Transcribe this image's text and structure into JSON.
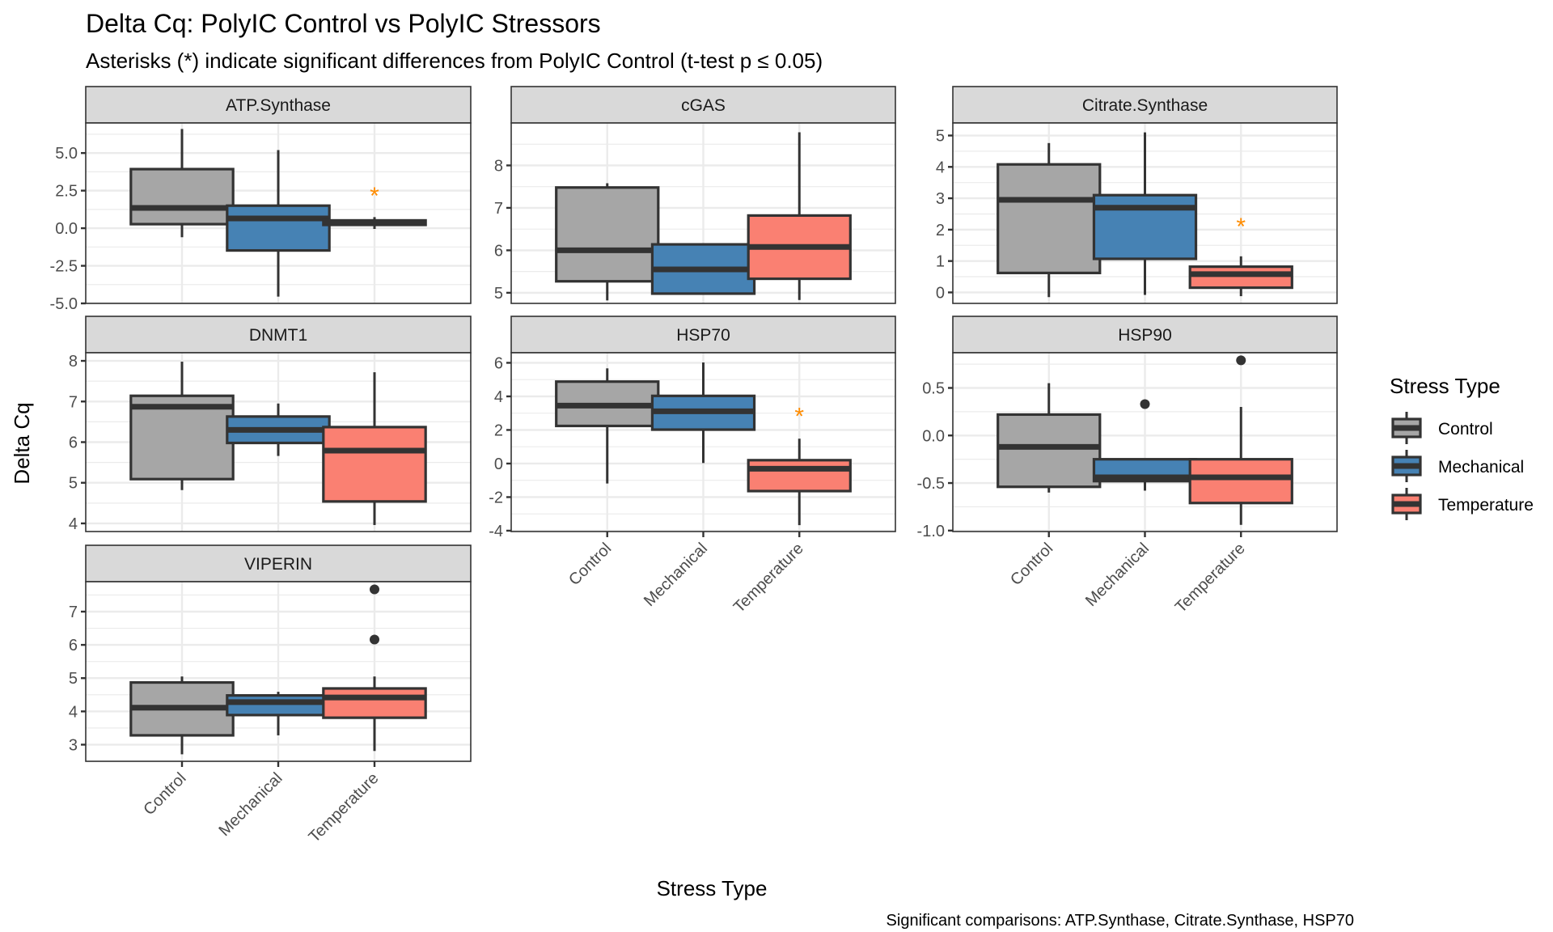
{
  "chart_data": {
    "type": "boxplot",
    "title": "Delta Cq: PolyIC Control vs PolyIC Stressors",
    "subtitle": "Asterisks (*) indicate significant differences from PolyIC Control (t-test p ≤ 0.05)",
    "xlabel": "Stress Type",
    "ylabel": "Delta Cq",
    "caption": "Significant comparisons: ATP.Synthase, Citrate.Synthase, HSP70",
    "categories": [
      "Control",
      "Mechanical",
      "Temperature"
    ],
    "legend": {
      "title": "Stress Type",
      "position": "right",
      "entries": [
        {
          "label": "Control",
          "color": "#a6a6a6"
        },
        {
          "label": "Mechanical",
          "color": "#4682b4"
        },
        {
          "label": "Temperature",
          "color": "#fa8072"
        }
      ]
    },
    "significance_marker": {
      "symbol": "*",
      "color": "#ff8c00"
    },
    "grid": true,
    "facet_layout": "3 columns, free y scales",
    "panels": [
      {
        "name": "ATP.Synthase",
        "ylim": [
          -5.0,
          7.0
        ],
        "yticks": [
          "-5.0",
          "-2.5",
          "0.0",
          "2.5",
          "5.0"
        ],
        "ytick_values": [
          -5.0,
          -2.5,
          0.0,
          2.5,
          5.0
        ],
        "boxes": [
          {
            "group": "Control",
            "min": -0.6,
            "q1": 0.27,
            "median": 1.35,
            "q3": 3.93,
            "max": 6.6,
            "outliers": []
          },
          {
            "group": "Mechanical",
            "min": -4.55,
            "q1": -1.48,
            "median": 0.65,
            "q3": 1.5,
            "max": 5.2,
            "outliers": []
          },
          {
            "group": "Temperature",
            "min": -0.05,
            "q1": 0.22,
            "median": 0.38,
            "q3": 0.52,
            "max": 0.74,
            "outliers": []
          }
        ],
        "significant": [
          {
            "group": "Temperature",
            "y": 2.6
          }
        ]
      },
      {
        "name": "cGAS",
        "ylim": [
          4.75,
          9.0
        ],
        "yticks": [
          "5",
          "6",
          "7",
          "8"
        ],
        "ytick_values": [
          5,
          6,
          7,
          8
        ],
        "boxes": [
          {
            "group": "Control",
            "min": 4.82,
            "q1": 5.27,
            "median": 6.0,
            "q3": 7.48,
            "max": 7.58,
            "outliers": []
          },
          {
            "group": "Mechanical",
            "min": 4.98,
            "q1": 4.98,
            "median": 5.55,
            "q3": 6.14,
            "max": 6.14,
            "outliers": []
          },
          {
            "group": "Temperature",
            "min": 4.83,
            "q1": 5.33,
            "median": 6.08,
            "q3": 6.82,
            "max": 8.78,
            "outliers": []
          }
        ],
        "significant": []
      },
      {
        "name": "Citrate.Synthase",
        "ylim": [
          -0.35,
          5.4
        ],
        "yticks": [
          "0",
          "1",
          "2",
          "3",
          "4",
          "5"
        ],
        "ytick_values": [
          0,
          1,
          2,
          3,
          4,
          5
        ],
        "boxes": [
          {
            "group": "Control",
            "min": -0.15,
            "q1": 0.62,
            "median": 2.95,
            "q3": 4.08,
            "max": 4.76,
            "outliers": []
          },
          {
            "group": "Mechanical",
            "min": -0.08,
            "q1": 1.07,
            "median": 2.7,
            "q3": 3.1,
            "max": 5.1,
            "outliers": []
          },
          {
            "group": "Temperature",
            "min": -0.12,
            "q1": 0.15,
            "median": 0.58,
            "q3": 0.82,
            "max": 1.15,
            "outliers": []
          }
        ],
        "significant": [
          {
            "group": "Temperature",
            "y": 2.3
          }
        ]
      },
      {
        "name": "DNMT1",
        "ylim": [
          3.8,
          8.2
        ],
        "yticks": [
          "4",
          "5",
          "6",
          "7",
          "8"
        ],
        "ytick_values": [
          4,
          5,
          6,
          7,
          8
        ],
        "boxes": [
          {
            "group": "Control",
            "min": 4.82,
            "q1": 5.09,
            "median": 6.87,
            "q3": 7.14,
            "max": 7.98,
            "outliers": []
          },
          {
            "group": "Mechanical",
            "min": 5.66,
            "q1": 5.98,
            "median": 6.3,
            "q3": 6.63,
            "max": 6.95,
            "outliers": []
          },
          {
            "group": "Temperature",
            "min": 3.96,
            "q1": 4.54,
            "median": 5.79,
            "q3": 6.37,
            "max": 7.72,
            "outliers": []
          }
        ],
        "significant": []
      },
      {
        "name": "HSP70",
        "ylim": [
          -4.05,
          6.6
        ],
        "yticks": [
          "-4",
          "-2",
          "0",
          "2",
          "4",
          "6"
        ],
        "ytick_values": [
          -4,
          -2,
          0,
          2,
          4,
          6
        ],
        "boxes": [
          {
            "group": "Control",
            "min": -1.19,
            "q1": 2.24,
            "median": 3.45,
            "q3": 4.88,
            "max": 5.67,
            "outliers": []
          },
          {
            "group": "Mechanical",
            "min": 0.03,
            "q1": 2.02,
            "median": 3.11,
            "q3": 4.03,
            "max": 6.02,
            "outliers": []
          },
          {
            "group": "Temperature",
            "min": -3.67,
            "q1": -1.64,
            "median": -0.31,
            "q3": 0.2,
            "max": 1.48,
            "outliers": []
          }
        ],
        "significant": [
          {
            "group": "Temperature",
            "y": 3.2
          }
        ]
      },
      {
        "name": "HSP90",
        "ylim": [
          -1.01,
          0.87
        ],
        "yticks": [
          "-1.0",
          "-0.5",
          "0.0",
          "0.5"
        ],
        "ytick_values": [
          -1.0,
          -0.5,
          0.0,
          0.5
        ],
        "boxes": [
          {
            "group": "Control",
            "min": -0.6,
            "q1": -0.54,
            "median": -0.12,
            "q3": 0.22,
            "max": 0.55,
            "outliers": []
          },
          {
            "group": "Mechanical",
            "min": -0.58,
            "q1": -0.48,
            "median": -0.44,
            "q3": -0.25,
            "max": -0.25,
            "outliers": [
              0.33
            ]
          },
          {
            "group": "Temperature",
            "min": -0.94,
            "q1": -0.71,
            "median": -0.44,
            "q3": -0.25,
            "max": 0.3,
            "outliers": [
              0.79
            ]
          }
        ],
        "significant": []
      },
      {
        "name": "VIPERIN",
        "ylim": [
          2.5,
          7.9
        ],
        "yticks": [
          "3",
          "4",
          "5",
          "6",
          "7"
        ],
        "ytick_values": [
          3,
          4,
          5,
          6,
          7
        ],
        "boxes": [
          {
            "group": "Control",
            "min": 2.71,
            "q1": 3.28,
            "median": 4.11,
            "q3": 4.87,
            "max": 5.05,
            "outliers": []
          },
          {
            "group": "Mechanical",
            "min": 3.28,
            "q1": 3.89,
            "median": 4.28,
            "q3": 4.48,
            "max": 4.59,
            "outliers": []
          },
          {
            "group": "Temperature",
            "min": 2.81,
            "q1": 3.81,
            "median": 4.42,
            "q3": 4.69,
            "max": 5.05,
            "outliers": [
              6.16,
              7.67
            ]
          }
        ],
        "significant": []
      }
    ]
  }
}
